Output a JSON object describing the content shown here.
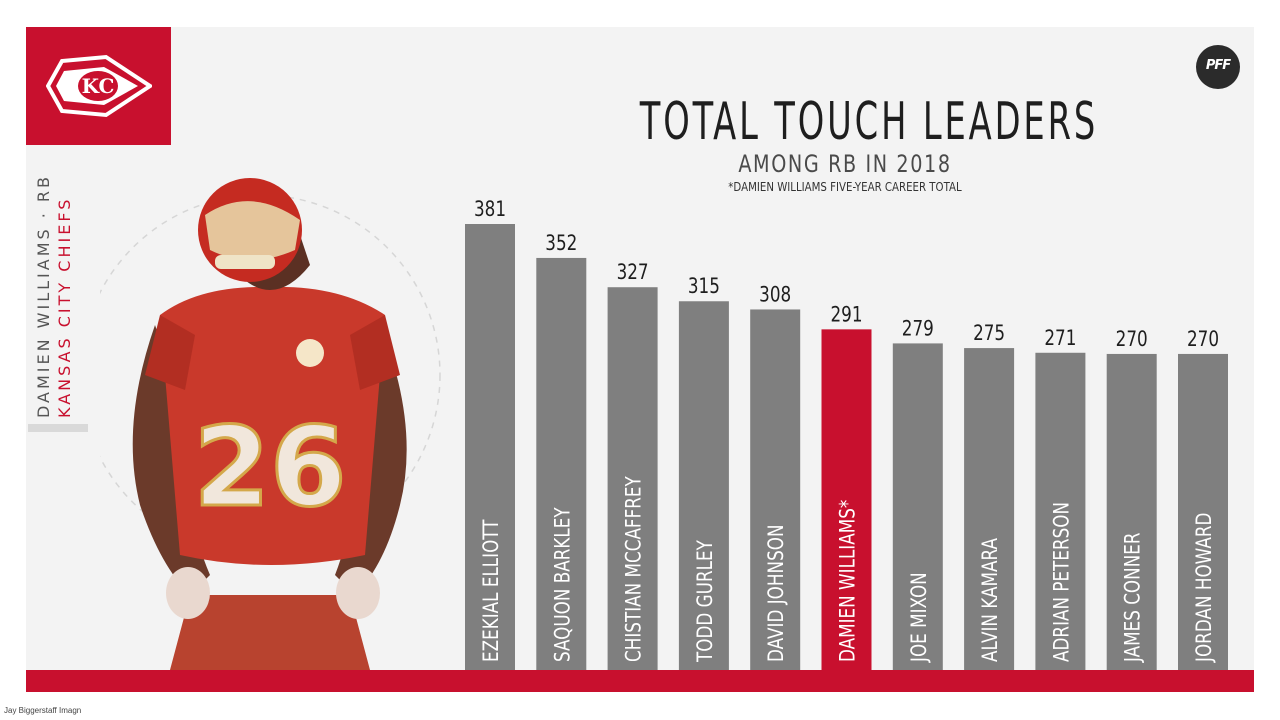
{
  "header": {
    "team_logo": "chiefs-arrowhead-logo",
    "brand_logo_text": "PFF"
  },
  "player": {
    "name_line": "DAMIEN WILLIAMS · RB",
    "team_line": "KANSAS CITY CHIEFS",
    "jersey_number": "26"
  },
  "credit": "Jay Biggerstaff Imagn",
  "colors": {
    "accent": "#c8102e",
    "bar": "#7f7f7f",
    "panel": "#f3f3f3",
    "text": "#1e1e1e"
  },
  "chart_data": {
    "type": "bar",
    "title": "TOTAL TOUCH LEADERS",
    "subtitle": "AMONG RB IN 2018",
    "footnote": "*DAMIEN WILLIAMS FIVE-YEAR CAREER TOTAL",
    "categories": [
      "EZEKIAL ELLIOTT",
      "SAQUON BARKLEY",
      "CHISTIAN MCCAFFREY",
      "TODD GURLEY",
      "DAVID JOHNSON",
      "DAMIEN WILLIAMS*",
      "JOE MIXON",
      "ALVIN KAMARA",
      "ADRIAN PETERSON",
      "JAMES CONNER",
      "JORDAN HOWARD"
    ],
    "values": [
      381,
      352,
      327,
      315,
      308,
      291,
      279,
      275,
      271,
      270,
      270
    ],
    "highlight": "DAMIEN WILLIAMS*",
    "xlabel": "",
    "ylabel": "",
    "grid": false,
    "ylim": [
      0,
      381
    ]
  }
}
